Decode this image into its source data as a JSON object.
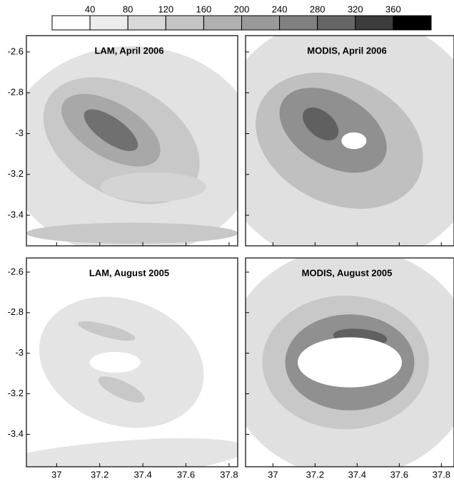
{
  "colorbar": {
    "lim": [
      0,
      400
    ],
    "ticks": [
      40,
      80,
      120,
      160,
      200,
      240,
      280,
      320,
      360
    ],
    "colors": [
      "#ffffff",
      "#ececec",
      "#d8d8d8",
      "#c4c4c4",
      "#b0b0b0",
      "#9a9a9a",
      "#808080",
      "#666666",
      "#3c3c3c",
      "#000000"
    ]
  },
  "chart_data": [
    {
      "type": "contour",
      "title": "LAM, April 2006",
      "xlim": [
        36.86,
        37.84
      ],
      "ylim": [
        -3.55,
        -2.52
      ],
      "xticks": [
        37,
        37.2,
        37.4,
        37.6,
        37.8
      ],
      "yticks": [
        -2.6,
        -2.8,
        -3,
        -3.2,
        -3.4
      ]
    },
    {
      "type": "contour",
      "title": "MODIS, April 2006",
      "xlim": [
        36.87,
        37.86
      ],
      "ylim": [
        -3.55,
        -2.52
      ],
      "xticks": [
        37,
        37.2,
        37.4,
        37.6,
        37.8
      ],
      "yticks": [
        -2.6,
        -2.8,
        -3,
        -3.2,
        -3.4
      ]
    },
    {
      "type": "contour",
      "title": "LAM, August 2005",
      "xlim": [
        36.86,
        37.84
      ],
      "ylim": [
        -3.56,
        -2.53
      ],
      "xticks": [
        37,
        37.2,
        37.4,
        37.6,
        37.8
      ],
      "yticks": [
        -2.6,
        -2.8,
        -3,
        -3.2,
        -3.4
      ]
    },
    {
      "type": "contour",
      "title": "MODIS, August 2005",
      "xlim": [
        36.87,
        37.86
      ],
      "ylim": [
        -3.56,
        -2.53
      ],
      "xticks": [
        37,
        37.2,
        37.4,
        37.6,
        37.8
      ],
      "yticks": [
        -2.6,
        -2.8,
        -3,
        -3.2,
        -3.4
      ]
    }
  ]
}
